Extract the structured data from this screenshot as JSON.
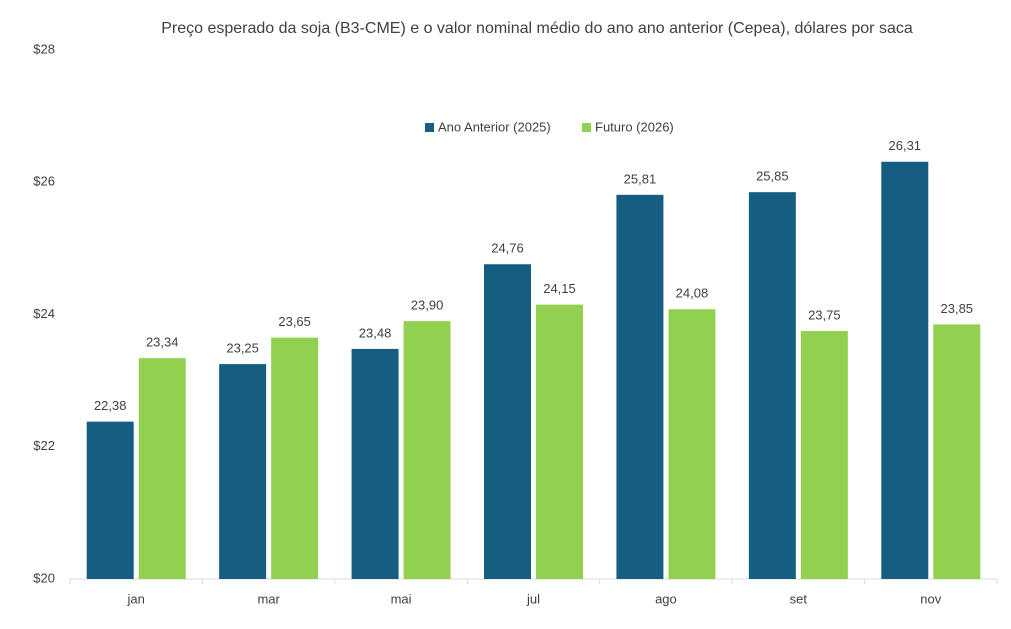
{
  "chart_data": {
    "type": "bar",
    "title": "Preço esperado da soja (B3-CME) e o valor nominal médio do ano ano anterior (Cepea), dólares por saca",
    "categories": [
      "jan",
      "mar",
      "mai",
      "jul",
      "ago",
      "set",
      "nov"
    ],
    "series": [
      {
        "name": "Ano Anterior (2025)",
        "color": "#155e82",
        "values": [
          22.38,
          23.25,
          23.48,
          24.76,
          25.81,
          25.85,
          26.31
        ],
        "value_labels": [
          "22,38",
          "23,25",
          "23,48",
          "24,76",
          "25,81",
          "25,85",
          "26,31"
        ]
      },
      {
        "name": "Futuro (2026)",
        "color": "#92d050",
        "values": [
          23.34,
          23.65,
          23.9,
          24.15,
          24.08,
          23.75,
          23.85
        ],
        "value_labels": [
          "23,34",
          "23,65",
          "23,90",
          "24,15",
          "24,08",
          "23,75",
          "23,85"
        ]
      }
    ],
    "ylim": [
      20,
      28
    ],
    "yticks": [
      {
        "value": 20,
        "label": "$20"
      },
      {
        "value": 22,
        "label": "$22"
      },
      {
        "value": 24,
        "label": "$24"
      },
      {
        "value": 26,
        "label": "$26"
      },
      {
        "value": 28,
        "label": "$28"
      }
    ],
    "legend": "top"
  }
}
